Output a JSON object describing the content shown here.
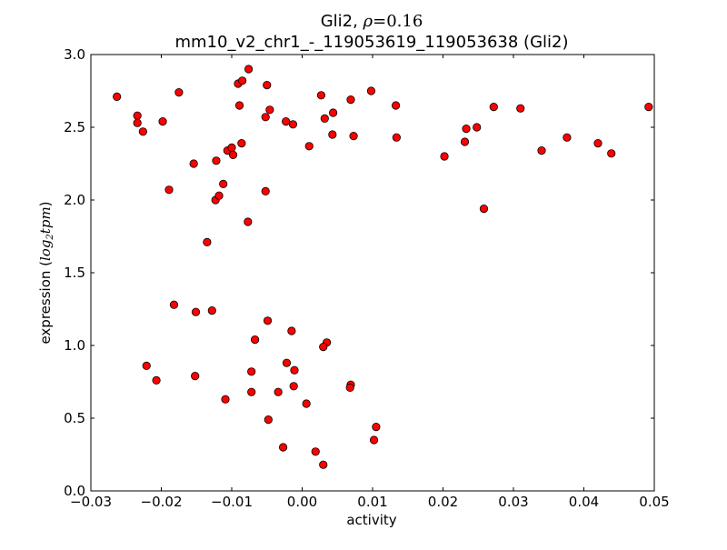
{
  "chart_data": {
    "type": "scatter",
    "title_line1_prefix": "Gli2, ",
    "title_line1_rho_symbol": "ρ",
    "title_line1_rho_value": "=0.16",
    "title_line2": "mm10_v2_chr1_-_119053619_119053638 (Gli2)",
    "xlabel": "activity",
    "ylabel_prefix": "expression (",
    "ylabel_math": "log",
    "ylabel_sub": "2",
    "ylabel_math2": "tpm",
    "ylabel_suffix": ")",
    "xlim": [
      -0.03,
      0.05
    ],
    "ylim": [
      0.0,
      3.0
    ],
    "x_ticks": [
      -0.03,
      -0.02,
      -0.01,
      0.0,
      0.01,
      0.02,
      0.03,
      0.04,
      0.05
    ],
    "x_tick_labels": [
      "−0.03",
      "−0.02",
      "−0.01",
      "0.00",
      "0.01",
      "0.02",
      "0.03",
      "0.04",
      "0.05"
    ],
    "y_ticks": [
      0.0,
      0.5,
      1.0,
      1.5,
      2.0,
      2.5,
      3.0
    ],
    "y_tick_labels": [
      "0.0",
      "0.5",
      "1.0",
      "1.5",
      "2.0",
      "2.5",
      "3.0"
    ],
    "grid": false,
    "marker_color": "#ff0000",
    "marker_edge_color": "#000000",
    "points": [
      {
        "x": -0.0263,
        "y": 2.71
      },
      {
        "x": -0.0234,
        "y": 2.58
      },
      {
        "x": -0.0234,
        "y": 2.53
      },
      {
        "x": -0.0226,
        "y": 2.47
      },
      {
        "x": -0.0198,
        "y": 2.54
      },
      {
        "x": -0.0175,
        "y": 2.74
      },
      {
        "x": -0.0189,
        "y": 2.07
      },
      {
        "x": -0.0154,
        "y": 2.25
      },
      {
        "x": -0.0135,
        "y": 1.71
      },
      {
        "x": -0.0122,
        "y": 2.27
      },
      {
        "x": -0.0123,
        "y": 2.0
      },
      {
        "x": -0.0118,
        "y": 2.03
      },
      {
        "x": -0.0112,
        "y": 2.11
      },
      {
        "x": -0.0106,
        "y": 2.34
      },
      {
        "x": -0.01,
        "y": 2.36
      },
      {
        "x": -0.0098,
        "y": 2.31
      },
      {
        "x": -0.0091,
        "y": 2.8
      },
      {
        "x": -0.0089,
        "y": 2.65
      },
      {
        "x": -0.0085,
        "y": 2.82
      },
      {
        "x": -0.0086,
        "y": 2.39
      },
      {
        "x": -0.0076,
        "y": 2.9
      },
      {
        "x": -0.0077,
        "y": 1.85
      },
      {
        "x": -0.005,
        "y": 2.79
      },
      {
        "x": -0.0052,
        "y": 2.57
      },
      {
        "x": -0.0046,
        "y": 2.62
      },
      {
        "x": -0.0052,
        "y": 2.06
      },
      {
        "x": -0.0023,
        "y": 2.54
      },
      {
        "x": -0.0013,
        "y": 2.52
      },
      {
        "x": 0.001,
        "y": 2.37
      },
      {
        "x": 0.0027,
        "y": 2.72
      },
      {
        "x": 0.0032,
        "y": 2.56
      },
      {
        "x": 0.0044,
        "y": 2.6
      },
      {
        "x": 0.0043,
        "y": 2.45
      },
      {
        "x": 0.0069,
        "y": 2.69
      },
      {
        "x": 0.0073,
        "y": 2.44
      },
      {
        "x": 0.0098,
        "y": 2.75
      },
      {
        "x": 0.0133,
        "y": 2.65
      },
      {
        "x": 0.0134,
        "y": 2.43
      },
      {
        "x": 0.0202,
        "y": 2.3
      },
      {
        "x": 0.0231,
        "y": 2.4
      },
      {
        "x": 0.0233,
        "y": 2.49
      },
      {
        "x": 0.0248,
        "y": 2.5
      },
      {
        "x": 0.0258,
        "y": 1.94
      },
      {
        "x": 0.0272,
        "y": 2.64
      },
      {
        "x": 0.031,
        "y": 2.63
      },
      {
        "x": 0.034,
        "y": 2.34
      },
      {
        "x": 0.0376,
        "y": 2.43
      },
      {
        "x": 0.042,
        "y": 2.39
      },
      {
        "x": 0.0439,
        "y": 2.32
      },
      {
        "x": 0.0492,
        "y": 2.64
      },
      {
        "x": -0.0182,
        "y": 1.28
      },
      {
        "x": -0.0151,
        "y": 1.23
      },
      {
        "x": -0.0128,
        "y": 1.24
      },
      {
        "x": -0.0049,
        "y": 1.17
      },
      {
        "x": -0.0067,
        "y": 1.04
      },
      {
        "x": -0.0015,
        "y": 1.1
      },
      {
        "x": 0.0035,
        "y": 1.02
      },
      {
        "x": 0.003,
        "y": 0.99
      },
      {
        "x": -0.0221,
        "y": 0.86
      },
      {
        "x": -0.0207,
        "y": 0.76
      },
      {
        "x": -0.0152,
        "y": 0.79
      },
      {
        "x": -0.0072,
        "y": 0.82
      },
      {
        "x": -0.0022,
        "y": 0.88
      },
      {
        "x": -0.0011,
        "y": 0.83
      },
      {
        "x": -0.0012,
        "y": 0.72
      },
      {
        "x": -0.0072,
        "y": 0.68
      },
      {
        "x": -0.0034,
        "y": 0.68
      },
      {
        "x": -0.0109,
        "y": 0.63
      },
      {
        "x": 0.0069,
        "y": 0.73
      },
      {
        "x": 0.0068,
        "y": 0.71
      },
      {
        "x": 0.0006,
        "y": 0.6
      },
      {
        "x": -0.0048,
        "y": 0.49
      },
      {
        "x": 0.0105,
        "y": 0.44
      },
      {
        "x": 0.0102,
        "y": 0.35
      },
      {
        "x": -0.0027,
        "y": 0.3
      },
      {
        "x": 0.0019,
        "y": 0.27
      },
      {
        "x": 0.003,
        "y": 0.18
      }
    ]
  }
}
